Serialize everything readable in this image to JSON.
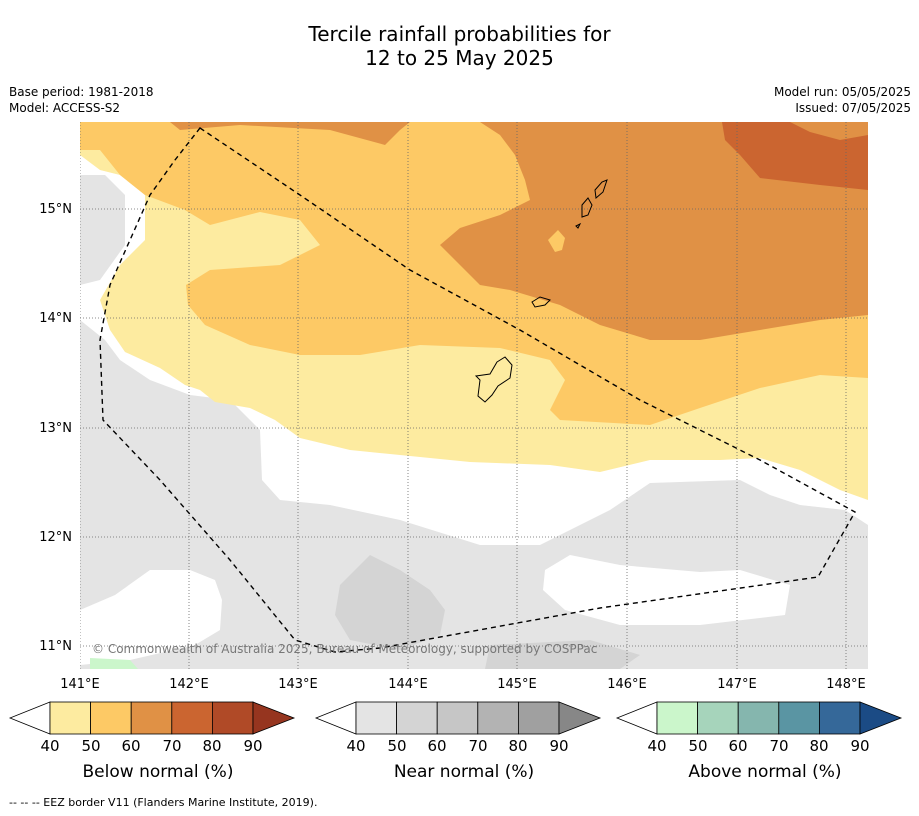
{
  "title_line1": "Tercile rainfall probabilities for",
  "title_line2": "12 to 25 May 2025",
  "meta_left": [
    "Base period: 1981-2018",
    "Model: ACCESS-S2"
  ],
  "meta_right": [
    "Model run: 05/05/2025",
    "Issued: 07/05/2025"
  ],
  "map": {
    "lat_labels": [
      "15°N",
      "14°N",
      "13°N",
      "12°N",
      "11°N"
    ],
    "lon_labels": [
      "141°E",
      "142°E",
      "143°E",
      "144°E",
      "145°E",
      "146°E",
      "147°E",
      "148°E"
    ],
    "lon_range": [
      141,
      148.2
    ],
    "lat_range": [
      10.8,
      15.8
    ],
    "copyright": "© Commonwealth of Australia 2025, Bureau of Meteorology, supported by COSPPac"
  },
  "colorbars": [
    {
      "caption": "Below normal (%)",
      "colors": [
        "#fdeba0",
        "#fdc965",
        "#e09145",
        "#cb6530",
        "#b04a27",
        "#96351f"
      ]
    },
    {
      "caption": "Near normal (%)",
      "colors": [
        "#e4e4e4",
        "#d4d4d4",
        "#c6c6c6",
        "#b3b3b3",
        "#a0a0a0",
        "#878787"
      ]
    },
    {
      "caption": "Above normal (%)",
      "colors": [
        "#cbf6cb",
        "#a6d4bb",
        "#85b6ae",
        "#5a95a3",
        "#356899",
        "#1b4b85"
      ]
    }
  ],
  "tick_labels": [
    "40",
    "50",
    "60",
    "70",
    "80",
    "90"
  ],
  "footer": "--  --  -- EEZ border V11 (Flanders Marine Institute, 2019)."
}
